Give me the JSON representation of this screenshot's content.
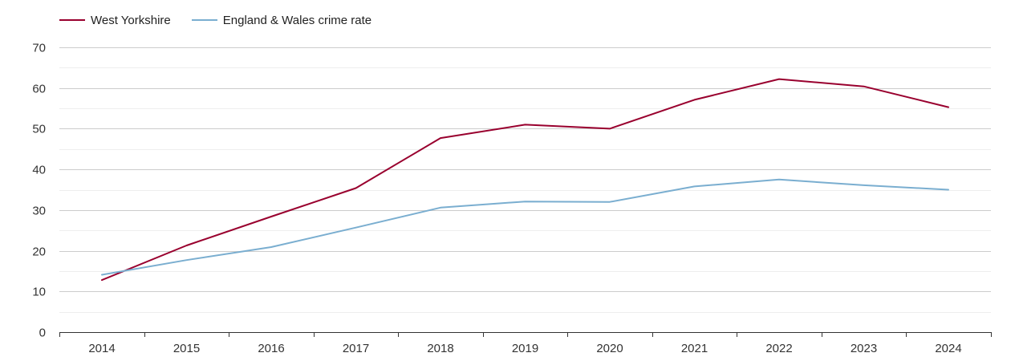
{
  "colors": {
    "west_yorkshire": "#99002e",
    "england_wales": "#7aaed0",
    "grid_major": "#cccccc",
    "grid_minor": "#eeeeee",
    "axis": "#333333"
  },
  "chart_data": {
    "type": "line",
    "x": [
      "2014",
      "2015",
      "2016",
      "2017",
      "2018",
      "2019",
      "2020",
      "2021",
      "2022",
      "2023",
      "2024"
    ],
    "series": [
      {
        "name": "West Yorkshire",
        "color_key": "west_yorkshire",
        "values": [
          12.8,
          21.3,
          28.4,
          35.4,
          47.7,
          51.0,
          50.0,
          57.1,
          62.2,
          60.4,
          55.3
        ]
      },
      {
        "name": "England & Wales crime rate",
        "color_key": "england_wales",
        "values": [
          14.1,
          17.7,
          20.9,
          25.7,
          30.6,
          32.1,
          32.0,
          35.8,
          37.5,
          36.1,
          35.0
        ]
      }
    ],
    "yticks": [
      0,
      10,
      20,
      30,
      40,
      50,
      60,
      70
    ],
    "ylim": [
      0,
      70
    ],
    "grid": true,
    "legend_position": "top-left",
    "title": "",
    "xlabel": "",
    "ylabel": ""
  }
}
